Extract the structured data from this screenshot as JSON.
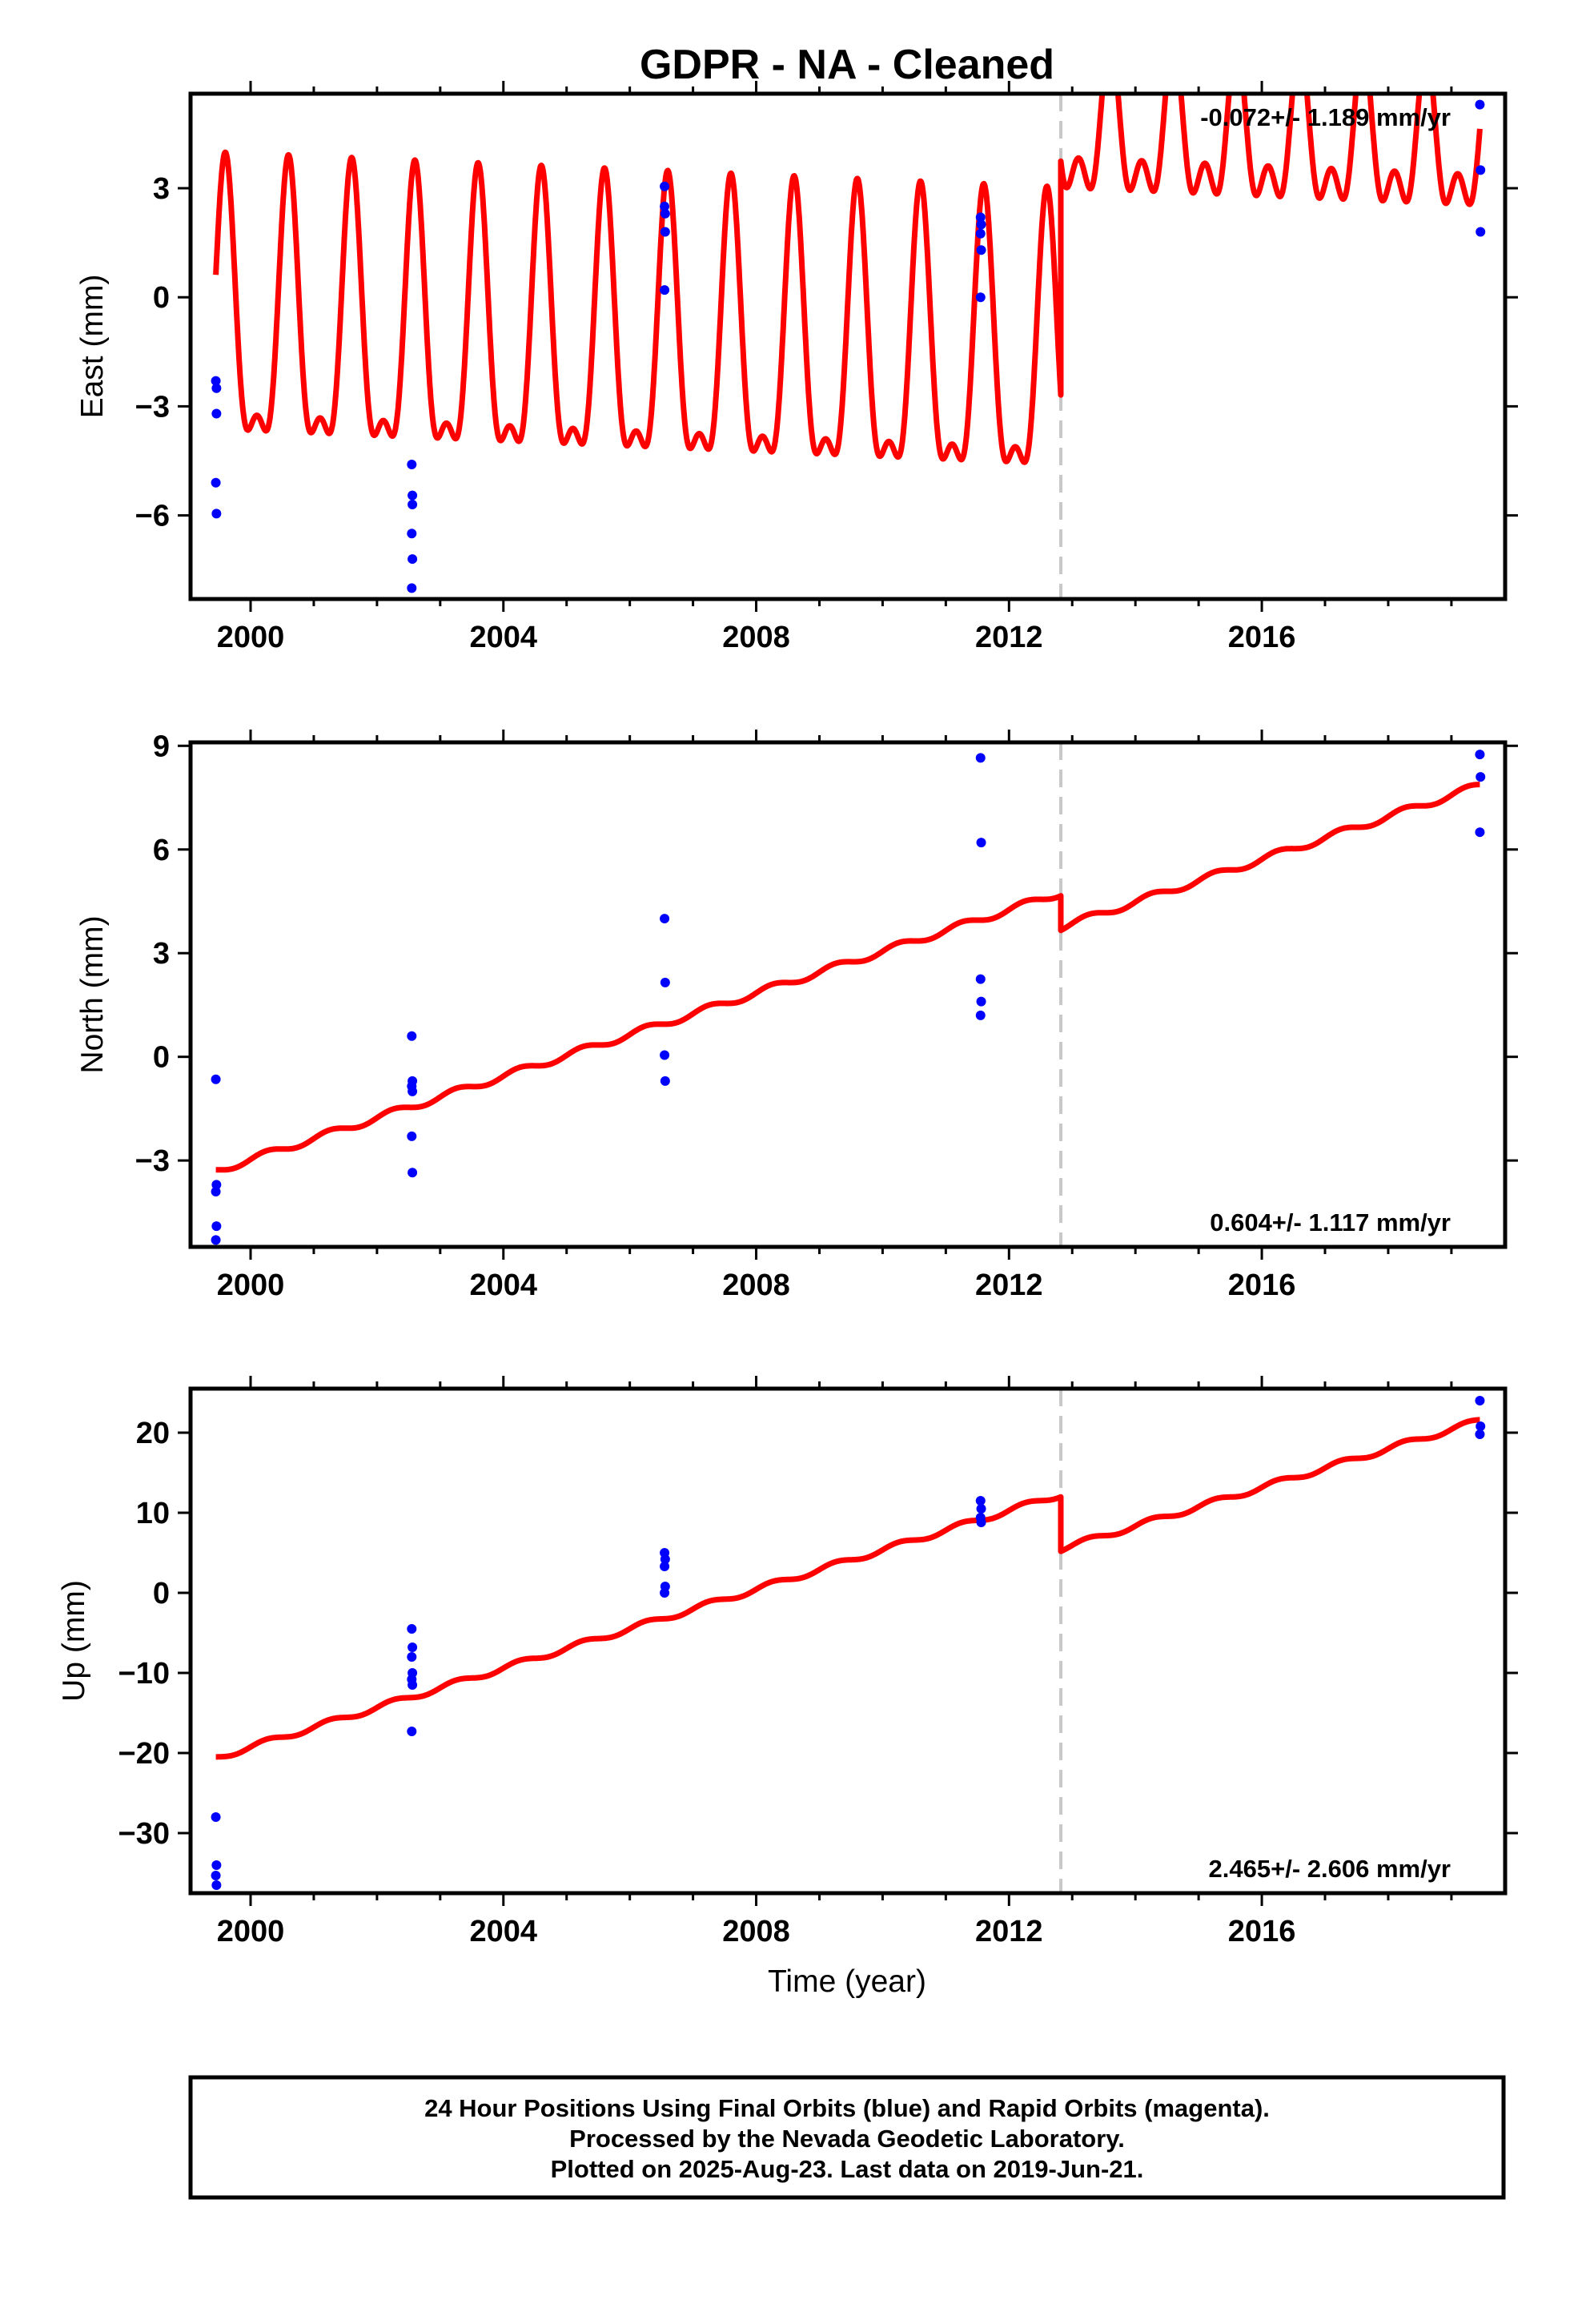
{
  "title": "GDPR  - NA - Cleaned",
  "xlabel": "Time (year)",
  "caption": [
    "24 Hour Positions Using Final Orbits (blue) and Rapid Orbits (magenta).",
    "Processed by the Nevada Geodetic Laboratory.",
    "Plotted on 2025-Aug-23. Last data on 2019-Jun-21."
  ],
  "colors": {
    "data_points": "#0000ff",
    "model_line": "#ff0000",
    "step_marker": "#c8c8c8",
    "frame": "#000000"
  },
  "chart_data": [
    {
      "type": "scatter",
      "component": "east",
      "ylabel": "East (mm)",
      "rate_label": "-0.072+/- 1.189 mm/yr",
      "rate_position": "top-right",
      "xlim": [
        1999.05,
        2019.85
      ],
      "ylim": [
        -8.3,
        5.6
      ],
      "x_ticks": [
        2000,
        2004,
        2008,
        2012,
        2016
      ],
      "y_ticks": [
        3,
        0,
        -3,
        -6
      ],
      "y_tick_labels": [
        "3",
        "0",
        "−3",
        "−6"
      ],
      "step_epoch": 2012.82,
      "series": [
        {
          "role": "daily positions",
          "points": [
            [
              1999.45,
              -2.3
            ],
            [
              1999.46,
              -2.5
            ],
            [
              1999.46,
              -3.2
            ],
            [
              1999.45,
              -5.1
            ],
            [
              1999.46,
              -5.95
            ],
            [
              2002.55,
              -4.6
            ],
            [
              2002.56,
              -5.45
            ],
            [
              2002.56,
              -5.7
            ],
            [
              2002.55,
              -6.5
            ],
            [
              2002.56,
              -7.2
            ],
            [
              2002.55,
              -8.0
            ],
            [
              2006.55,
              3.05
            ],
            [
              2006.55,
              2.5
            ],
            [
              2006.56,
              2.3
            ],
            [
              2006.56,
              1.8
            ],
            [
              2006.55,
              0.2
            ],
            [
              2011.55,
              2.2
            ],
            [
              2011.56,
              2.0
            ],
            [
              2011.55,
              1.75
            ],
            [
              2011.56,
              1.3
            ],
            [
              2011.55,
              0.0
            ],
            [
              2019.45,
              5.3
            ],
            [
              2019.46,
              3.5
            ],
            [
              2019.46,
              1.8
            ]
          ]
        },
        {
          "role": "model",
          "segments": [
            {
              "start": 1999.45,
              "end": 2012.82,
              "offset": -1.05,
              "rate": -0.072,
              "annual": 3.6,
              "semiannual": 1.45
            },
            {
              "start": 2012.82,
              "end": 2019.45,
              "offset": 4.45,
              "rate": -0.072,
              "annual": 1.7,
              "semiannual": 1.1
            }
          ]
        }
      ]
    },
    {
      "type": "scatter",
      "component": "north",
      "ylabel": "North (mm)",
      "rate_label": "0.604+/- 1.117 mm/yr",
      "rate_position": "bottom-right",
      "xlim": [
        1999.05,
        2019.85
      ],
      "ylim": [
        -5.5,
        9.1
      ],
      "x_ticks": [
        2000,
        2004,
        2008,
        2012,
        2016
      ],
      "y_ticks": [
        9,
        6,
        3,
        0,
        -3
      ],
      "y_tick_labels": [
        "9",
        "6",
        "3",
        "0",
        "−3"
      ],
      "step_epoch": 2012.82,
      "series": [
        {
          "role": "daily positions",
          "points": [
            [
              1999.45,
              -0.65
            ],
            [
              1999.46,
              -3.7
            ],
            [
              1999.45,
              -3.9
            ],
            [
              1999.46,
              -4.9
            ],
            [
              1999.45,
              -5.3
            ],
            [
              2002.55,
              0.6
            ],
            [
              2002.56,
              -0.7
            ],
            [
              2002.55,
              -0.85
            ],
            [
              2002.56,
              -1.0
            ],
            [
              2002.55,
              -2.3
            ],
            [
              2002.56,
              -3.35
            ],
            [
              2006.55,
              4.0
            ],
            [
              2006.56,
              2.15
            ],
            [
              2006.55,
              0.05
            ],
            [
              2006.56,
              -0.7
            ],
            [
              2011.55,
              8.65
            ],
            [
              2011.56,
              6.2
            ],
            [
              2011.55,
              2.25
            ],
            [
              2011.56,
              1.6
            ],
            [
              2011.55,
              1.2
            ],
            [
              2019.45,
              8.75
            ],
            [
              2019.46,
              8.1
            ],
            [
              2019.45,
              6.5
            ]
          ]
        },
        {
          "role": "model",
          "segments": [
            {
              "start": 1999.45,
              "end": 2012.82,
              "y_start": -3.3,
              "y_end": 4.75,
              "annual": 0.1
            },
            {
              "start": 2012.82,
              "end": 2019.45,
              "y_start": 3.75,
              "y_end": 7.85,
              "annual": 0.1
            }
          ]
        }
      ]
    },
    {
      "type": "scatter",
      "component": "up",
      "ylabel": "Up (mm)",
      "rate_label": "2.465+/- 2.606 mm/yr",
      "rate_position": "bottom-right",
      "xlim": [
        1999.05,
        2019.85
      ],
      "ylim": [
        -37.5,
        25.5
      ],
      "x_ticks": [
        2000,
        2004,
        2008,
        2012,
        2016
      ],
      "y_ticks": [
        20,
        10,
        0,
        -10,
        -20,
        -30
      ],
      "y_tick_labels": [
        "20",
        "10",
        "0",
        "−10",
        "−20",
        "−30"
      ],
      "step_epoch": 2012.82,
      "series": [
        {
          "role": "daily positions",
          "points": [
            [
              1999.45,
              -28.0
            ],
            [
              1999.46,
              -34.0
            ],
            [
              1999.45,
              -35.3
            ],
            [
              1999.46,
              -36.5
            ],
            [
              2002.55,
              -4.5
            ],
            [
              2002.56,
              -6.8
            ],
            [
              2002.55,
              -8.0
            ],
            [
              2002.56,
              -10.0
            ],
            [
              2002.55,
              -10.8
            ],
            [
              2002.56,
              -11.5
            ],
            [
              2002.55,
              -17.3
            ],
            [
              2006.55,
              5.0
            ],
            [
              2006.56,
              4.2
            ],
            [
              2006.55,
              3.3
            ],
            [
              2006.56,
              0.8
            ],
            [
              2006.55,
              0.0
            ],
            [
              2011.55,
              11.5
            ],
            [
              2011.56,
              10.5
            ],
            [
              2011.55,
              9.4
            ],
            [
              2011.56,
              8.8
            ],
            [
              2019.45,
              24.0
            ],
            [
              2019.46,
              20.8
            ],
            [
              2019.45,
              19.8
            ]
          ]
        },
        {
          "role": "model",
          "segments": [
            {
              "start": 1999.45,
              "end": 2012.82,
              "y_start": -20.6,
              "y_end": 12.3,
              "annual": 0.35
            },
            {
              "start": 2012.82,
              "end": 2019.45,
              "y_start": 5.5,
              "y_end": 21.5,
              "annual": 0.35
            }
          ]
        }
      ]
    }
  ]
}
